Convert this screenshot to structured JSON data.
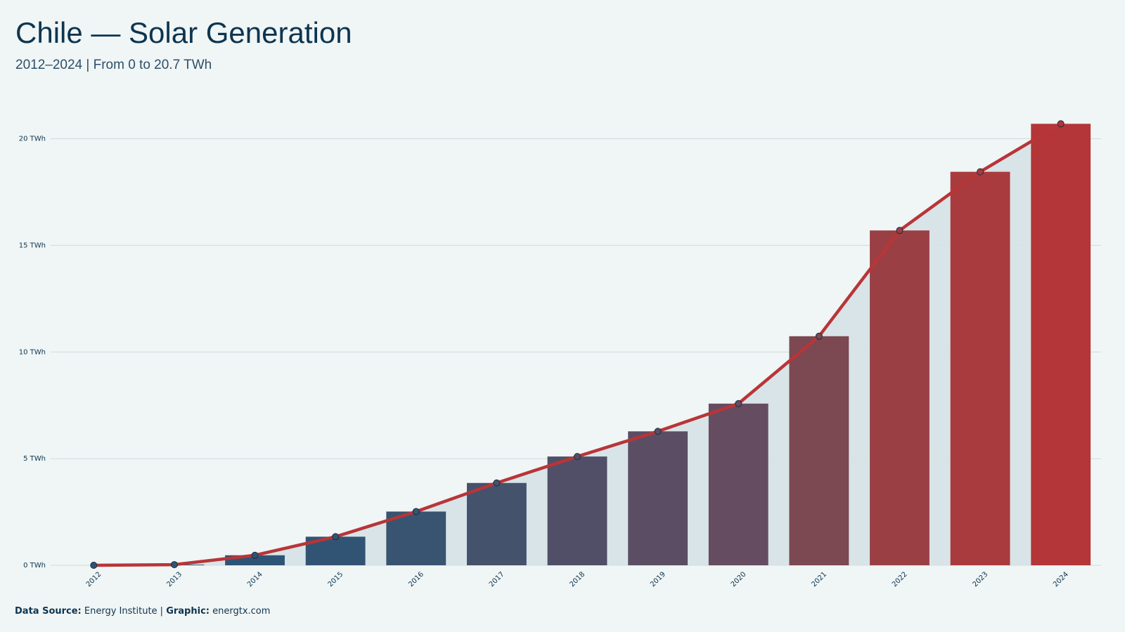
{
  "chart_data": {
    "type": "bar-line",
    "title": "Chile — Solar Generation",
    "subtitle": "2012–2024 | From 0 to 20.7 TWh",
    "categories": [
      "2012",
      "2013",
      "2014",
      "2015",
      "2016",
      "2017",
      "2018",
      "2019",
      "2020",
      "2021",
      "2022",
      "2023",
      "2024"
    ],
    "values": [
      0,
      0.03,
      0.47,
      1.34,
      2.52,
      3.86,
      5.1,
      6.28,
      7.58,
      10.74,
      15.7,
      18.45,
      20.7
    ],
    "bar_colors": [
      "#2a5577",
      "#2c5577",
      "#2e5475",
      "#325474",
      "#385470",
      "#45526c",
      "#514f68",
      "#5b4e64",
      "#664c60",
      "#7c4852",
      "#9a4045",
      "#a93b3e",
      "#b43638"
    ],
    "line_color": "#b83538",
    "area_color": "#d5e2e5",
    "ylim": [
      0,
      21.5
    ],
    "yticks": [
      {
        "value": 0,
        "label": "0 TWh"
      },
      {
        "value": 5,
        "label": "5 TWh"
      },
      {
        "value": 10,
        "label": "10 TWh"
      },
      {
        "value": 15,
        "label": "15 TWh"
      },
      {
        "value": 20,
        "label": "20 TWh"
      }
    ],
    "grid": true,
    "footer": {
      "source_label": "Data Source:",
      "source": "Energy Institute |",
      "graphic_label": "Graphic:",
      "graphic": "energtx.com"
    }
  }
}
